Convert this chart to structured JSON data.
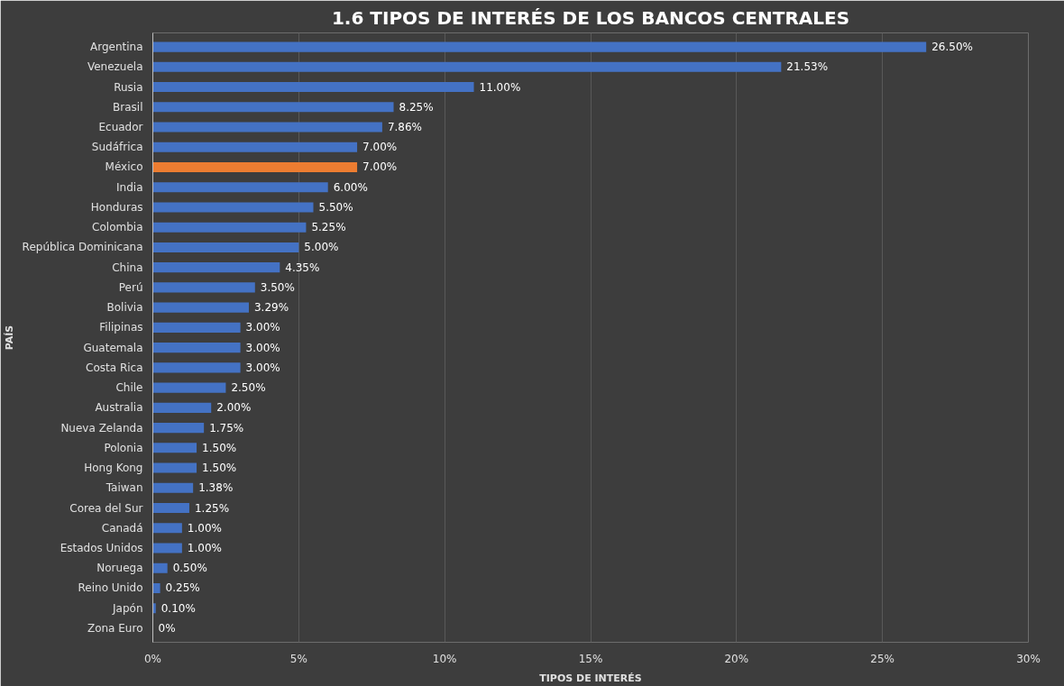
{
  "chart_data": {
    "type": "bar",
    "orientation": "horizontal",
    "title": "1.6 TIPOS DE INTERÉS DE LOS BANCOS CENTRALES",
    "xlabel": "TIPOS DE INTERÉS",
    "ylabel": "PAÍS",
    "categories": [
      "Argentina",
      "Venezuela",
      "Rusia",
      "Brasil",
      "Ecuador",
      "Sudáfrica",
      "México",
      "India",
      "Honduras",
      "Colombia",
      "República Dominicana",
      "China",
      "Perú",
      "Bolivia",
      "Filipinas",
      "Guatemala",
      "Costa Rica",
      "Chile",
      "Australia",
      "Nueva Zelanda",
      "Polonia",
      "Hong Kong",
      "Taiwan",
      "Corea del Sur",
      "Canadá",
      "Estados Unidos",
      "Noruega",
      "Reino Unido",
      "Japón",
      "Zona Euro"
    ],
    "values": [
      26.5,
      21.53,
      11.0,
      8.25,
      7.86,
      7.0,
      7.0,
      6.0,
      5.5,
      5.25,
      5.0,
      4.35,
      3.5,
      3.29,
      3.0,
      3.0,
      3.0,
      2.5,
      2.0,
      1.75,
      1.5,
      1.5,
      1.38,
      1.25,
      1.0,
      1.0,
      0.5,
      0.25,
      0.1,
      0
    ],
    "colors": [
      "#4472c4",
      "#4472c4",
      "#4472c4",
      "#4472c4",
      "#4472c4",
      "#4472c4",
      "#ed7d31",
      "#4472c4",
      "#4472c4",
      "#4472c4",
      "#4472c4",
      "#4472c4",
      "#4472c4",
      "#4472c4",
      "#4472c4",
      "#4472c4",
      "#4472c4",
      "#4472c4",
      "#4472c4",
      "#4472c4",
      "#4472c4",
      "#4472c4",
      "#4472c4",
      "#4472c4",
      "#4472c4",
      "#4472c4",
      "#4472c4",
      "#4472c4",
      "#4472c4",
      "#4472c4"
    ],
    "value_labels": [
      "26.50%",
      "21.53%",
      "11.00%",
      "8.25%",
      "7.86%",
      "7.00%",
      "7.00%",
      "6.00%",
      "5.50%",
      "5.25%",
      "5.00%",
      "4.35%",
      "3.50%",
      "3.29%",
      "3.00%",
      "3.00%",
      "3.00%",
      "2.50%",
      "2.00%",
      "1.75%",
      "1.50%",
      "1.50%",
      "1.38%",
      "1.25%",
      "1.00%",
      "1.00%",
      "0.50%",
      "0.25%",
      "0.10%",
      "0%"
    ],
    "xlim": [
      0,
      30
    ],
    "xticks": [
      {
        "value": 0,
        "label": "0%"
      },
      {
        "value": 5,
        "label": "5%"
      },
      {
        "value": 10,
        "label": "10%"
      },
      {
        "value": 15,
        "label": "15%"
      },
      {
        "value": 20,
        "label": "20%"
      },
      {
        "value": 25,
        "label": "25%"
      },
      {
        "value": 30,
        "label": "30%"
      }
    ],
    "grid": "x"
  }
}
